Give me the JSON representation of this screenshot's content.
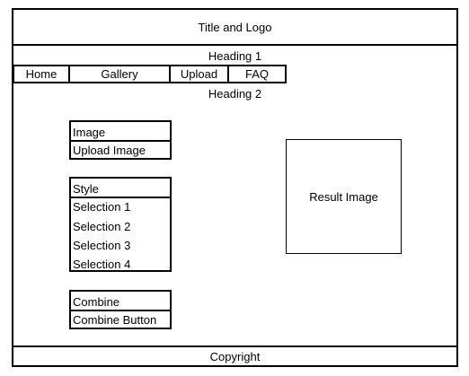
{
  "header": {
    "title": "Title and Logo"
  },
  "heading1": "Heading 1",
  "nav": {
    "items": [
      "Home",
      "Gallery",
      "Upload",
      "FAQ"
    ]
  },
  "heading2": "Heading 2",
  "image_panel": {
    "title": "Image",
    "upload_label": "Upload Image"
  },
  "style_panel": {
    "title": "Style",
    "options": [
      "Selection 1",
      "Selection 2",
      "Selection 3",
      "Selection 4"
    ]
  },
  "combine_panel": {
    "title": "Combine",
    "button_label": "Combine Button"
  },
  "result": {
    "label": "Result Image"
  },
  "footer": {
    "copyright": "Copyright"
  }
}
